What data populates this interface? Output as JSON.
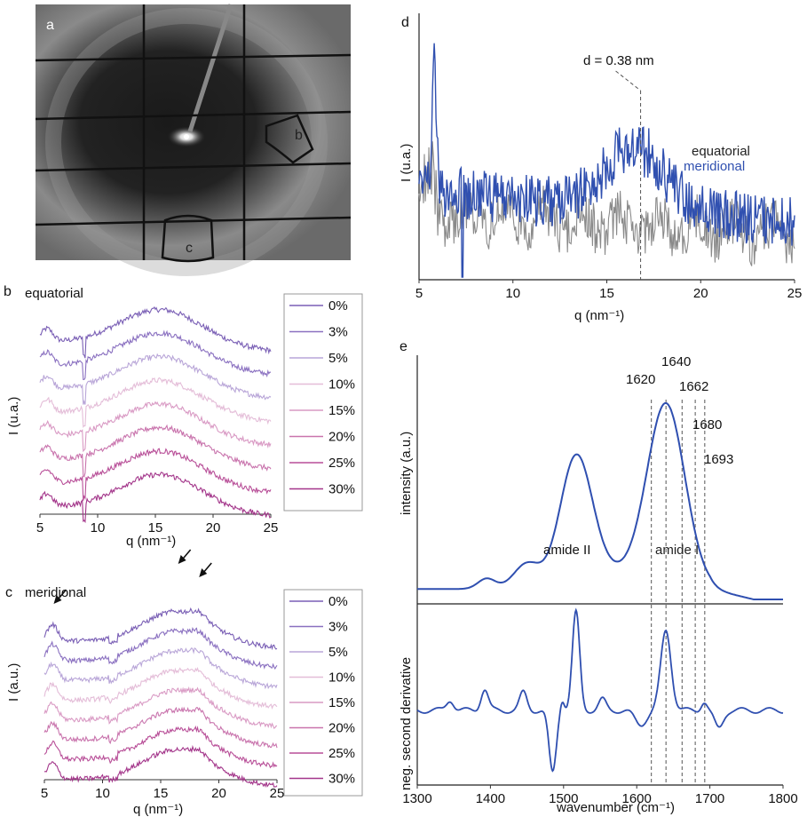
{
  "panels": {
    "a": {
      "letter": "a",
      "region_b": "b",
      "region_c": "c"
    },
    "d": {
      "letter": "d"
    },
    "e": {
      "letter": "e"
    }
  },
  "chart_data": [
    {
      "id": "b",
      "letter": "b",
      "type": "line",
      "title": "equatorial",
      "xlabel": "q (nm⁻¹)",
      "ylabel": "I (u.a.)",
      "xlim": [
        5,
        25
      ],
      "xticks": [
        "5",
        "10",
        "15",
        "20",
        "25"
      ],
      "legend_position": "right",
      "series": [
        {
          "name": "0%",
          "color": "#7a5fb5",
          "offset": 0.0
        },
        {
          "name": "3%",
          "color": "#8a70c0",
          "offset": 0.13
        },
        {
          "name": "5%",
          "color": "#b9a6d8",
          "offset": 0.26
        },
        {
          "name": "10%",
          "color": "#e4bdd8",
          "offset": 0.39
        },
        {
          "name": "15%",
          "color": "#d99ac4",
          "offset": 0.52
        },
        {
          "name": "20%",
          "color": "#c974ad",
          "offset": 0.65
        },
        {
          "name": "25%",
          "color": "#b84f98",
          "offset": 0.78
        },
        {
          "name": "30%",
          "color": "#a3358a",
          "offset": 0.91
        }
      ]
    },
    {
      "id": "c",
      "letter": "c",
      "type": "line",
      "title": "meridional",
      "xlabel": "q (nm⁻¹)",
      "ylabel": "I (a.u.)",
      "xlim": [
        5,
        25
      ],
      "xticks": [
        "5",
        "10",
        "15",
        "20",
        "25"
      ],
      "legend_position": "right",
      "arrows_at_q": [
        5.8,
        16.5,
        18.3
      ],
      "series": [
        {
          "name": "0%",
          "color": "#7a5fb5",
          "offset": 0.0
        },
        {
          "name": "3%",
          "color": "#8a70c0",
          "offset": 0.12
        },
        {
          "name": "5%",
          "color": "#b9a6d8",
          "offset": 0.24
        },
        {
          "name": "10%",
          "color": "#e4bdd8",
          "offset": 0.36
        },
        {
          "name": "15%",
          "color": "#d99ac4",
          "offset": 0.48
        },
        {
          "name": "20%",
          "color": "#c974ad",
          "offset": 0.6
        },
        {
          "name": "25%",
          "color": "#b84f98",
          "offset": 0.72
        },
        {
          "name": "30%",
          "color": "#a3358a",
          "offset": 0.84
        }
      ]
    },
    {
      "id": "d",
      "letter": "d",
      "type": "line",
      "xlabel": "q (nm⁻¹)",
      "ylabel": "I (u.a.)",
      "xlim": [
        5,
        25
      ],
      "xticks": [
        "5",
        "10",
        "15",
        "20",
        "25"
      ],
      "annotation": {
        "text": "d = 0.38 nm",
        "q": 16.8
      },
      "series": [
        {
          "name": "equatorial",
          "color": "#8a8a8a"
        },
        {
          "name": "meridional",
          "color": "#3050b0"
        }
      ]
    },
    {
      "id": "e",
      "letter": "e",
      "type": "line",
      "xlabel": "wavenumber (cm⁻¹)",
      "ylabel_top": "intensity (a.u.)",
      "ylabel_bottom": "neg. second derivative",
      "xlim": [
        1300,
        1800
      ],
      "xticks": [
        "1300",
        "1400",
        "1500",
        "1600",
        "1700",
        "1800"
      ],
      "band_labels": [
        "amide II",
        "amide I"
      ],
      "reference_lines": [
        1620,
        1640,
        1662,
        1680,
        1693
      ],
      "reference_labels": [
        "1620",
        "1640",
        "1662",
        "1680",
        "1693"
      ],
      "series": [
        {
          "color": "#2f4fb0"
        }
      ]
    }
  ]
}
